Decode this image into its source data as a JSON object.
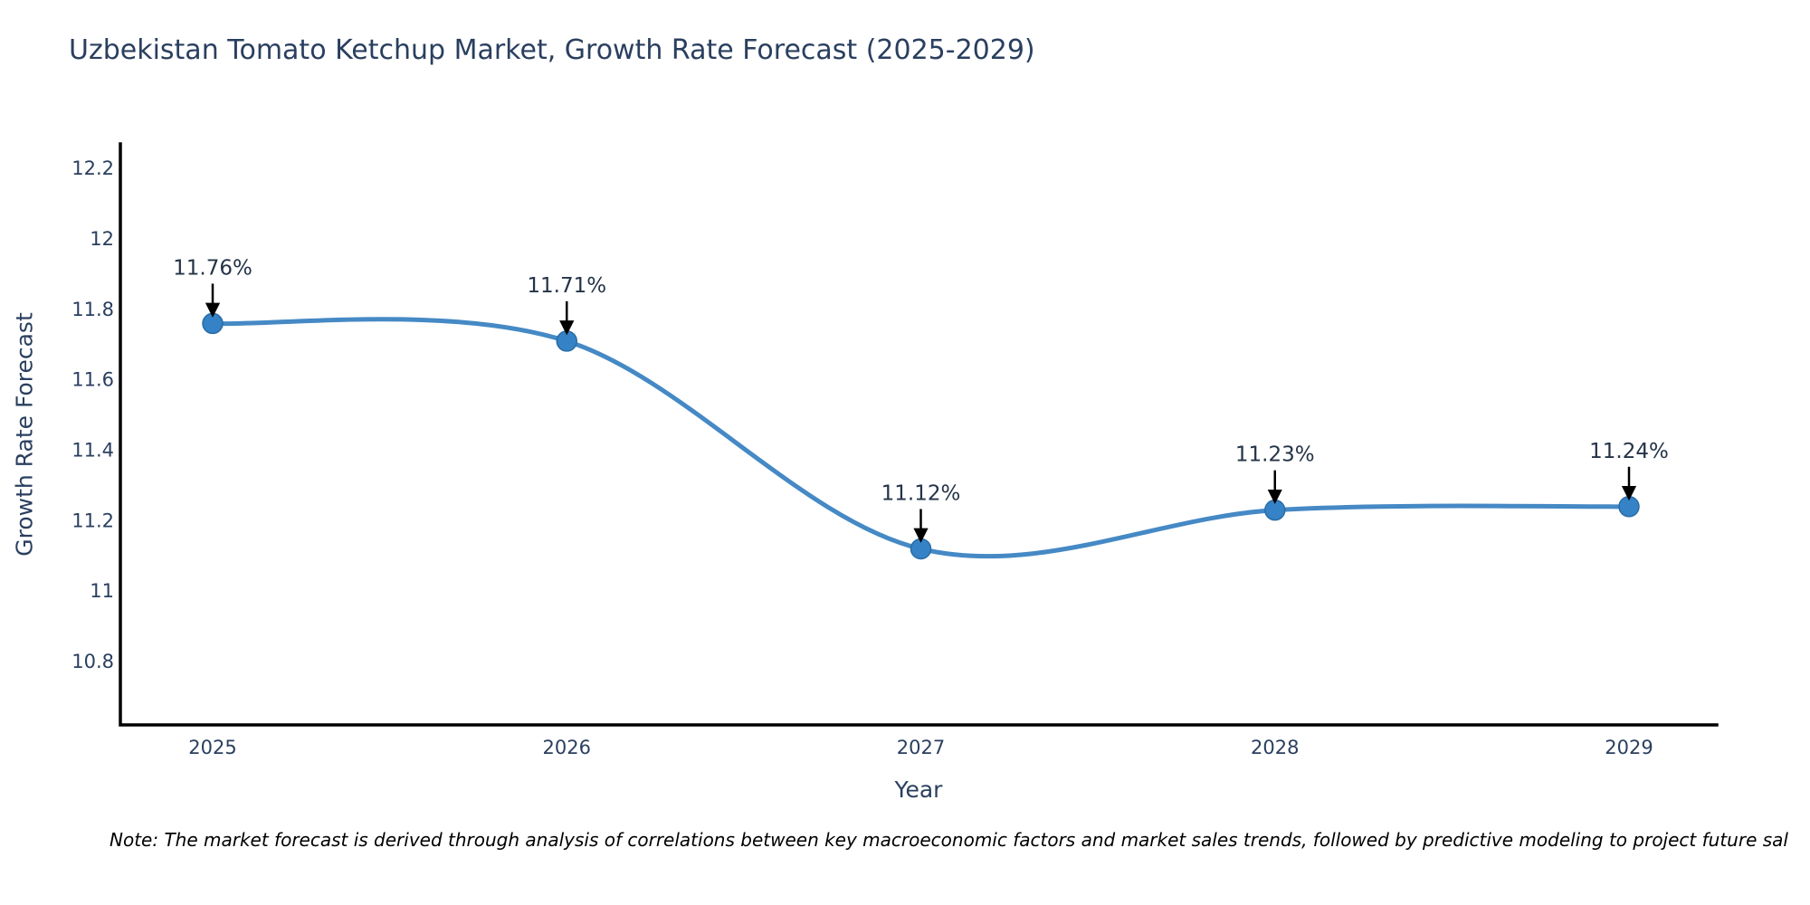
{
  "page": {
    "background": "#ffffff"
  },
  "chart_data": {
    "type": "line",
    "title": "Uzbekistan Tomato Ketchup Market, Growth Rate Forecast (2025-2029)",
    "xlabel": "Year",
    "ylabel": "Growth Rate Forecast",
    "x": [
      2025,
      2026,
      2027,
      2028,
      2029
    ],
    "series": [
      {
        "name": "Growth Rate Forecast",
        "values": [
          11.76,
          11.71,
          11.12,
          11.23,
          11.24
        ]
      }
    ],
    "point_labels": [
      "11.76%",
      "11.71%",
      "11.12%",
      "11.23%",
      "11.24%"
    ],
    "y_ticks": [
      10.8,
      11,
      11.2,
      11.4,
      11.6,
      11.8,
      12,
      12.2
    ],
    "ylim": [
      10.62,
      12.27
    ],
    "grid": false,
    "legend_position": "none",
    "line_smoothing": "spline",
    "colors": {
      "line": "#4589c5",
      "marker_fill": "#3583c6",
      "marker_stroke": "#2a6ca6",
      "axis": "#000000",
      "tick_text": "#2a3f5f",
      "annotation_text": "#243347",
      "annotation_arrow": "#000000",
      "title_text": "#2a3f5f"
    },
    "note": "Note: The market forecast is derived through analysis of correlations between key macroeconomic factors and market sales trends, followed by predictive modeling to project future sal"
  }
}
